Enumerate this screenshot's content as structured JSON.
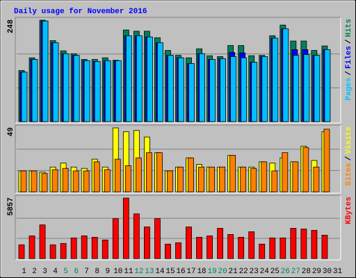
{
  "chart_data": [
    {
      "type": "bar",
      "title": "Daily usage for November 2016",
      "ylim": [
        0,
        248
      ],
      "yticks": [
        248
      ],
      "grid_lines": 3,
      "legend_separator": "/",
      "series": [
        {
          "name": "Pages",
          "color": "#00c0ff",
          "values": [
            121,
            152,
            246,
            193,
            166,
            162,
            149,
            147,
            149,
            149,
            210,
            210,
            207,
            193,
            162,
            156,
            142,
            166,
            152,
            154,
            159,
            156,
            145,
            159,
            204,
            227,
            162,
            164,
            162,
            176,
            0
          ]
        },
        {
          "name": "Files",
          "color": "#0000ff",
          "values": [
            121,
            152,
            246,
            193,
            166,
            162,
            149,
            147,
            149,
            149,
            210,
            210,
            207,
            193,
            162,
            156,
            142,
            166,
            152,
            154,
            169,
            168,
            145,
            159,
            204,
            227,
            176,
            176,
            162,
            176,
            0
          ]
        },
        {
          "name": "Hits",
          "color": "#00805c",
          "values": [
            125,
            156,
            248,
            198,
            173,
            166,
            152,
            152,
            156,
            150,
            224,
            221,
            221,
            205,
            174,
            162,
            156,
            178,
            161,
            159,
            186,
            186,
            161,
            162,
            210,
            236,
            197,
            197,
            174,
            185,
            0
          ]
        }
      ]
    },
    {
      "type": "bar",
      "ylim": [
        0,
        49
      ],
      "yticks": [
        49
      ],
      "grid_lines": 3,
      "legend_separator": "/",
      "series": [
        {
          "name": "Sites",
          "color": "#ff8000",
          "values": [
            16,
            16,
            14,
            17,
            18,
            16,
            16,
            23,
            17,
            25,
            20,
            26,
            30,
            30,
            16,
            19,
            26,
            19,
            19,
            19,
            28,
            19,
            18,
            23,
            16,
            30,
            23,
            34,
            19,
            48,
            0
          ]
        },
        {
          "name": "Visits",
          "color": "#ffff00",
          "values": [
            16,
            16,
            15,
            19,
            22,
            19,
            18,
            25,
            19,
            49,
            46,
            47,
            42,
            30,
            16,
            19,
            26,
            21,
            19,
            19,
            28,
            19,
            19,
            23,
            22,
            26,
            23,
            35,
            24,
            46,
            0
          ]
        }
      ]
    },
    {
      "type": "bar",
      "ylim": [
        0,
        5857
      ],
      "yticks": [
        5857
      ],
      "grid_lines": 3,
      "series": [
        {
          "name": "KBytes",
          "color": "#ff0000",
          "values": [
            1331,
            2197,
            3262,
            1331,
            1465,
            2000,
            2197,
            2064,
            1798,
            3863,
            5857,
            4327,
            3063,
            3863,
            1398,
            1531,
            3063,
            2064,
            2197,
            2930,
            2331,
            2064,
            2597,
            1398,
            2000,
            2000,
            2930,
            2863,
            2730,
            2264,
            0
          ]
        }
      ],
      "categories": [
        "1",
        "2",
        "3",
        "4",
        "5",
        "6",
        "7",
        "8",
        "9",
        "10",
        "11",
        "12",
        "13",
        "14",
        "15",
        "16",
        "17",
        "18",
        "19",
        "20",
        "21",
        "22",
        "23",
        "24",
        "25",
        "26",
        "27",
        "28",
        "29",
        "30",
        "31"
      ],
      "label_colors": [
        "#000000",
        "#000000",
        "#000000",
        "#000000",
        "#00805c",
        "#00805c",
        "#000000",
        "#000000",
        "#000000",
        "#000000",
        "#000000",
        "#00805c",
        "#00805c",
        "#000000",
        "#000000",
        "#000000",
        "#000000",
        "#000000",
        "#00805c",
        "#00805c",
        "#000000",
        "#000000",
        "#000000",
        "#000000",
        "#000000",
        "#00805c",
        "#00805c",
        "#000000",
        "#000000",
        "#000000",
        "#000000"
      ]
    }
  ]
}
